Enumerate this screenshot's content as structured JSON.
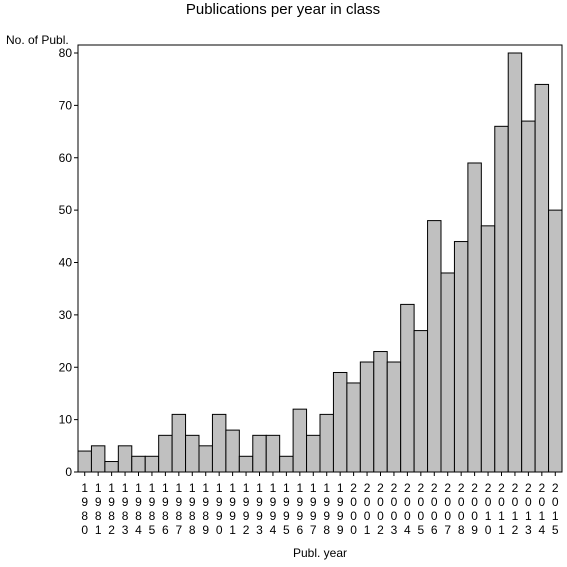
{
  "chart_data": {
    "type": "bar",
    "title": "Publications per year in class",
    "ylabel": "No. of Publ.",
    "xlabel": "Publ. year",
    "ylim": [
      0,
      80
    ],
    "yticks": [
      0,
      10,
      20,
      30,
      40,
      50,
      60,
      70,
      80
    ],
    "grid": false,
    "categories": [
      "1980",
      "1981",
      "1982",
      "1983",
      "1984",
      "1985",
      "1986",
      "1987",
      "1988",
      "1989",
      "1990",
      "1991",
      "1992",
      "1993",
      "1994",
      "1995",
      "1996",
      "1997",
      "1998",
      "1999",
      "2000",
      "2001",
      "2002",
      "2003",
      "2004",
      "2005",
      "2006",
      "2007",
      "2008",
      "2009",
      "2010",
      "2011",
      "2012",
      "2013",
      "2014",
      "2015"
    ],
    "values": [
      4,
      5,
      2,
      5,
      3,
      3,
      7,
      11,
      7,
      5,
      11,
      8,
      3,
      7,
      7,
      3,
      12,
      7,
      11,
      19,
      17,
      21,
      23,
      21,
      32,
      27,
      48,
      38,
      44,
      59,
      47,
      66,
      80,
      67,
      74,
      50
    ],
    "colors": {
      "bar_fill": "#c0c0c0",
      "bar_stroke": "#000000"
    }
  }
}
